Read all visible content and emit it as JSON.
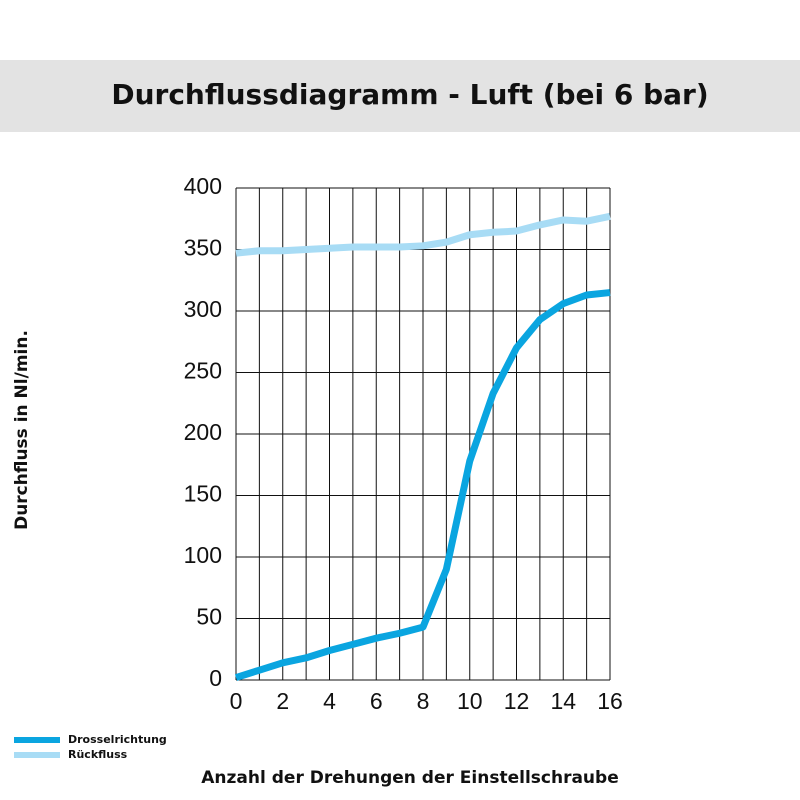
{
  "chart_data": {
    "type": "line",
    "title": "Durchflussdiagramm - Luft (bei 6 bar)",
    "x_label": "Anzahl der Drehungen der Einstellschraube",
    "y_label": "Durchfluss in Nl/min.",
    "x": [
      0,
      1,
      2,
      3,
      4,
      5,
      6,
      7,
      8,
      9,
      10,
      11,
      12,
      13,
      14,
      15,
      16
    ],
    "series": [
      {
        "name": "Drosselrichtung",
        "color": "#0aa5e0",
        "values": [
          2,
          8,
          14,
          18,
          24,
          29,
          34,
          38,
          43,
          90,
          178,
          233,
          270,
          293,
          306,
          313,
          315
        ]
      },
      {
        "name": "Rückfluss",
        "color": "#a8dcf5",
        "values": [
          347,
          349,
          349,
          350,
          351,
          352,
          352,
          352,
          353,
          356,
          362,
          364,
          365,
          370,
          374,
          373,
          377
        ]
      }
    ],
    "xlim": [
      0,
      16
    ],
    "xticks": [
      0,
      2,
      4,
      6,
      8,
      10,
      12,
      14,
      16
    ],
    "xminor_ticks": [
      1,
      3,
      5,
      7,
      9,
      11,
      13,
      15
    ],
    "ylim": [
      0,
      400
    ],
    "yticks": [
      0,
      50,
      100,
      150,
      200,
      250,
      300,
      350,
      400
    ],
    "grid": true,
    "legend": "bottom-left"
  }
}
